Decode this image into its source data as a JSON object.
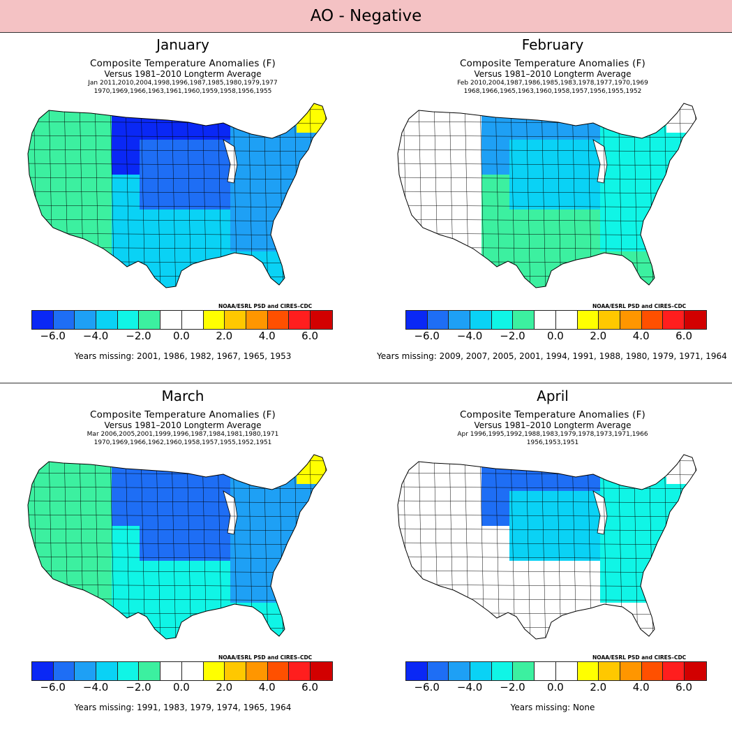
{
  "header": {
    "title": "AO - Negative"
  },
  "common": {
    "title_line1": "Composite Temperature Anomalies (F)",
    "title_line2": "Versus 1981–2010 Longterm Average",
    "credit": "NOAA/ESRL PSD and CIRES–CDC"
  },
  "colorbar": {
    "colors": [
      "#0a28f5",
      "#1e6ef5",
      "#1ea0f5",
      "#0ad2f5",
      "#10f5e6",
      "#3cf0a0",
      "#ffffff",
      "#ffffff",
      "#ffff00",
      "#ffc800",
      "#ff9600",
      "#ff5000",
      "#ff1e1e",
      "#d20000"
    ],
    "ticks": [
      "−6.0",
      "−4.0",
      "−2.0",
      "0.0",
      "2.0",
      "4.0",
      "6.0"
    ]
  },
  "panels": [
    {
      "month": "January",
      "years_line1": "Jan  2011,2010,2004,1998,1996,1987,1985,1980,1979,1977",
      "years_line2": "1970,1969,1966,1963,1961,1960,1959,1958,1956,1955",
      "missing": "Years missing: 2001, 1986, 1982, 1967, 1965, 1953",
      "map_colors": {
        "north": "#0a28f5",
        "central": "#1e6ef5",
        "east": "#1ea0f5",
        "south": "#0ad2f5",
        "west": "#3cf0a0",
        "maine": "#ffff00"
      }
    },
    {
      "month": "February",
      "years_line1": "Feb  2010,2004,1987,1986,1985,1983,1978,1977,1970,1969",
      "years_line2": "1968,1966,1965,1963,1960,1958,1957,1956,1955,1952",
      "missing": "Years missing: 2009, 2007, 2005, 2001, 1994, 1991, 1988, 1980, 1979, 1971, 1964",
      "map_colors": {
        "north": "#1ea0f5",
        "central": "#0ad2f5",
        "east": "#10f5e6",
        "south": "#3cf0a0",
        "west": "#ffffff",
        "maine": "#ffffff"
      }
    },
    {
      "month": "March",
      "years_line1": "Mar  2006,2005,2001,1999,1996,1987,1984,1981,1980,1971",
      "years_line2": "1970,1969,1966,1962,1960,1958,1957,1955,1952,1951",
      "missing": "Years missing: 1991, 1983, 1979, 1974, 1965, 1964",
      "map_colors": {
        "north": "#1e6ef5",
        "central": "#1e6ef5",
        "east": "#1ea0f5",
        "south": "#10f5e6",
        "west": "#3cf0a0",
        "maine": "#ffff00"
      }
    },
    {
      "month": "April",
      "years_line1": "Apr  1996,1995,1992,1988,1983,1979,1978,1973,1971,1966",
      "years_line2": "1956,1953,1951",
      "missing": "Years missing: None",
      "map_colors": {
        "north": "#1e6ef5",
        "central": "#0ad2f5",
        "east": "#10f5e6",
        "south": "#ffffff",
        "west": "#ffffff",
        "maine": "#ffffff"
      }
    }
  ]
}
